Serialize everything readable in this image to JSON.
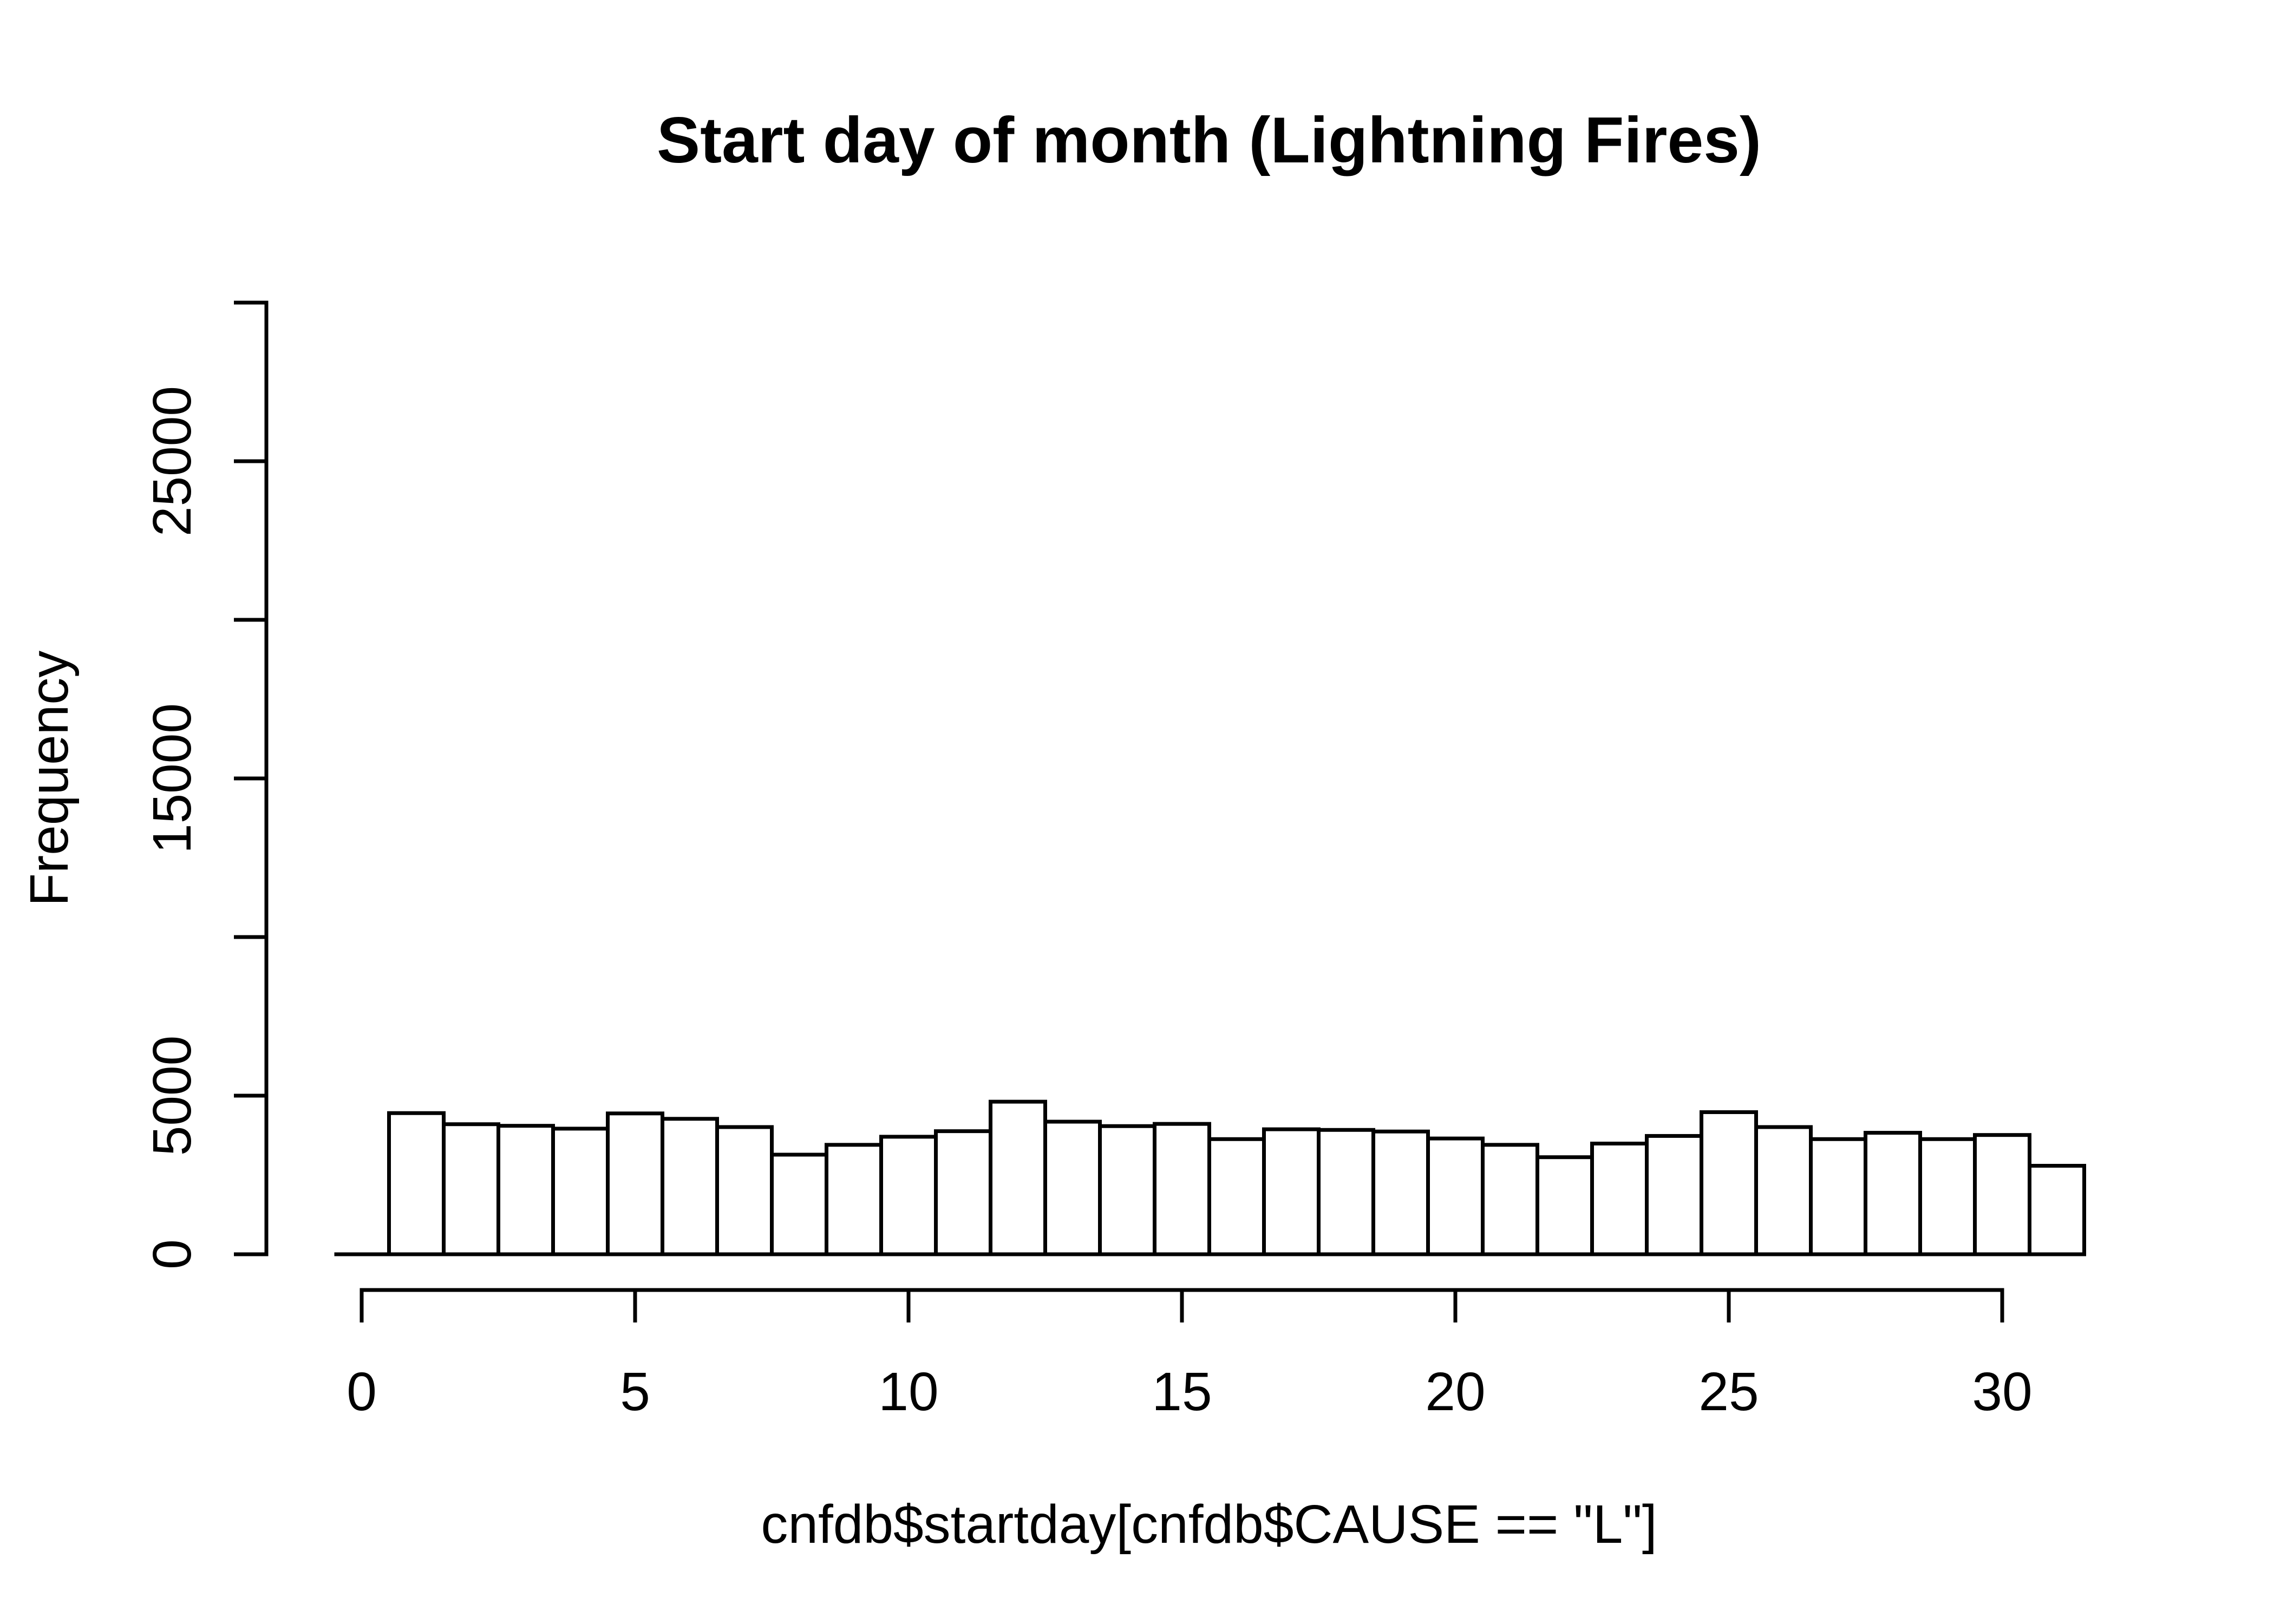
{
  "chart_data": {
    "type": "bar",
    "subtype": "histogram",
    "title": "Start day of month (Lightning Fires)",
    "xlabel": "cnfdb$startday[cnfdb$CAUSE == \"L\"]",
    "ylabel": "Frequency",
    "categories": [
      0,
      1,
      2,
      3,
      4,
      5,
      6,
      7,
      8,
      9,
      10,
      11,
      12,
      13,
      14,
      15,
      16,
      17,
      18,
      19,
      20,
      21,
      22,
      23,
      24,
      25,
      26,
      27,
      28,
      29,
      30,
      31
    ],
    "values": [
      0,
      4450,
      4100,
      4050,
      3960,
      4440,
      4270,
      4010,
      3140,
      3450,
      3705,
      3880,
      4810,
      4180,
      4040,
      4110,
      3630,
      3940,
      3920,
      3870,
      3650,
      3450,
      3060,
      3490,
      3730,
      4480,
      4010,
      3630,
      3830,
      3630,
      3760,
      2790
    ],
    "bin_width": 1,
    "bin_offset": -0.5,
    "xlim": [
      -0.5,
      31.5
    ],
    "ylim": [
      0,
      30000
    ],
    "x_ticks": [
      0,
      5,
      10,
      15,
      20,
      25,
      30
    ],
    "x_tick_labels": [
      "0",
      "5",
      "10",
      "15",
      "20",
      "25",
      "30"
    ],
    "y_ticks": [
      0,
      5000,
      10000,
      15000,
      20000,
      25000,
      30000
    ],
    "y_tick_labels": [
      "0",
      "5000",
      "",
      "15000",
      "",
      "25000",
      ""
    ],
    "grid": false,
    "legend": "none",
    "colors": {
      "background": "#ffffff",
      "bar_fill": "#ffffff",
      "bar_border": "#000000",
      "axis": "#000000",
      "text": "#000000"
    }
  }
}
